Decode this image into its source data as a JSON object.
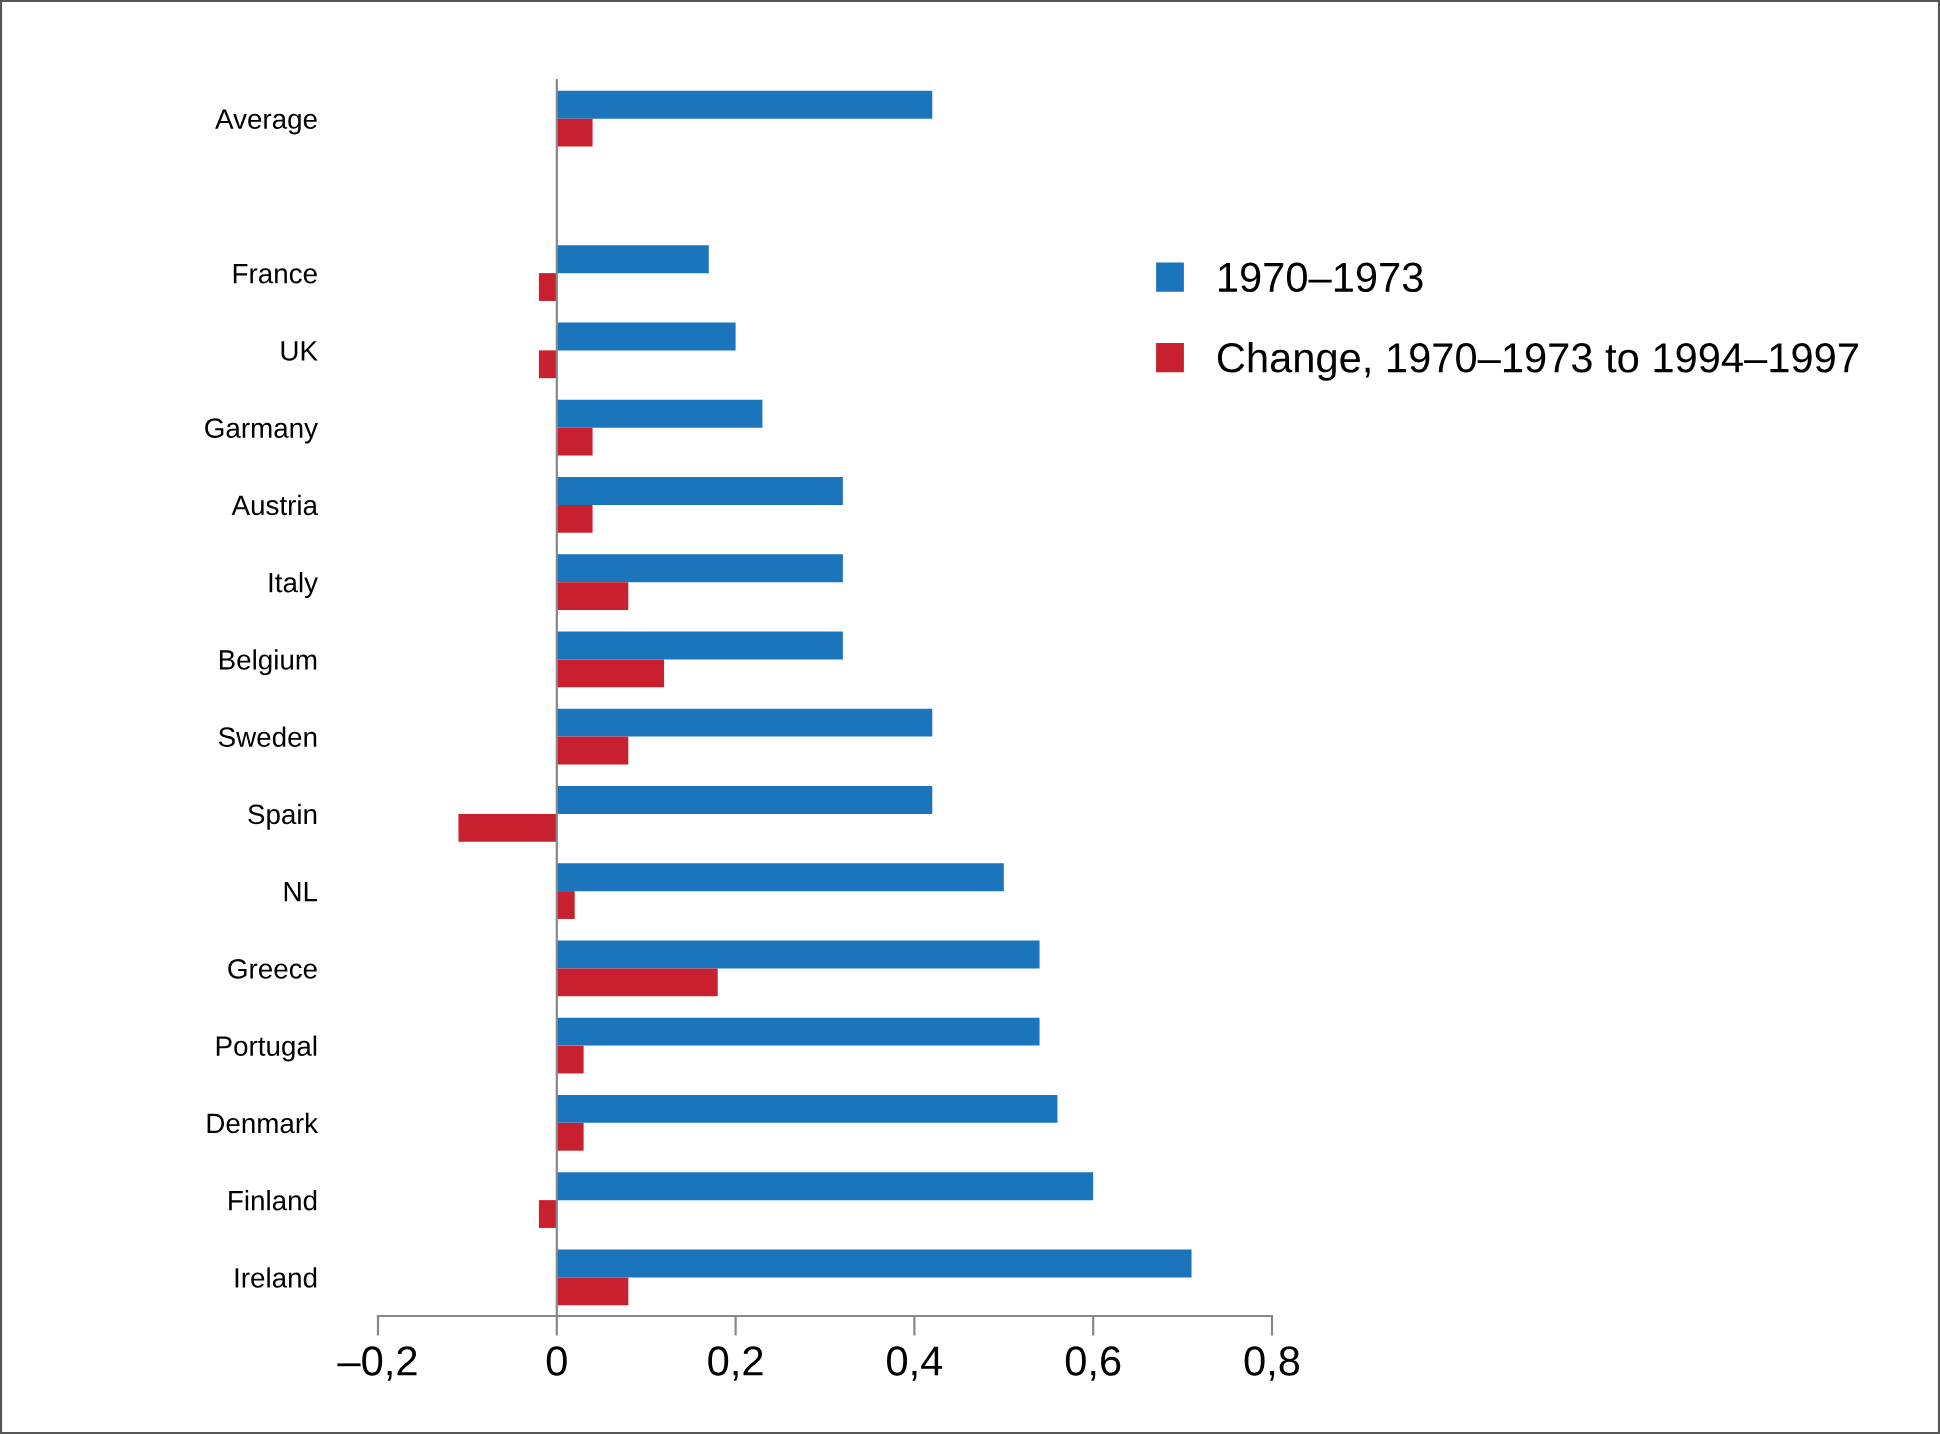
{
  "chart_data": {
    "type": "bar",
    "orientation": "horizontal",
    "categories": [
      "Average",
      null,
      "France",
      "UK",
      "Garmany",
      "Austria",
      "Italy",
      "Belgium",
      "Sweden",
      "Spain",
      "NL",
      "Greece",
      "Portugal",
      "Denmark",
      "Finland",
      "Ireland"
    ],
    "series": [
      {
        "name": "1970–1973",
        "color": "#1a75bc",
        "values": [
          0.42,
          null,
          0.17,
          0.2,
          0.23,
          0.32,
          0.32,
          0.32,
          0.42,
          0.42,
          0.5,
          0.54,
          0.54,
          0.56,
          0.6,
          0.71
        ]
      },
      {
        "name": "Change, 1970–1973 to 1994–1997",
        "color": "#c8202e",
        "values": [
          0.04,
          null,
          -0.02,
          -0.02,
          0.04,
          0.04,
          0.08,
          0.12,
          0.08,
          -0.11,
          0.02,
          0.18,
          0.03,
          0.03,
          -0.02,
          0.08
        ]
      }
    ],
    "xlim": [
      -0.2,
      0.8
    ],
    "xticks": [
      {
        "value": -0.2,
        "label": "–0,2"
      },
      0,
      {
        "value": 0.2,
        "label": "0,2"
      },
      {
        "value": 0.4,
        "label": "0,4"
      },
      {
        "value": 0.6,
        "label": "0,6"
      },
      {
        "value": 0.8,
        "label": "0,8"
      }
    ],
    "legend": "top right"
  }
}
